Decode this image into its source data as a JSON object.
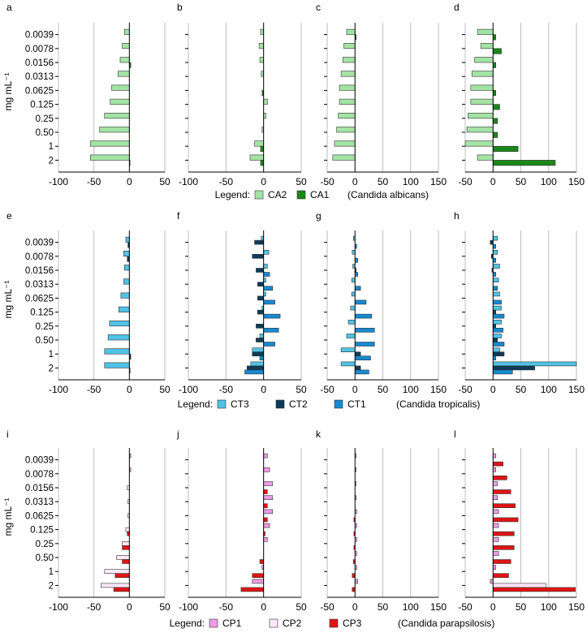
{
  "chart_data": {
    "type": "bar",
    "orientation": "horizontal",
    "ylabel": "mg mL⁻¹",
    "categories": [
      "0.0039",
      "0.0078",
      "0.0156",
      "0.0313",
      "0.0625",
      "0.125",
      "0.25",
      "0.50",
      "1",
      "2"
    ],
    "panels": [
      {
        "label": "a",
        "xlim": [
          -100,
          50
        ],
        "xticks": [
          -100,
          -50,
          0,
          50
        ],
        "series": [
          {
            "name": "CA2",
            "values": [
              -7,
              -10,
              -13,
              -16,
              -25,
              -27,
              -35,
              -42,
              -55,
              -55
            ]
          },
          {
            "name": "CA1",
            "values": [
              0,
              0,
              2,
              0,
              0,
              0,
              0,
              0,
              0,
              1
            ]
          }
        ]
      },
      {
        "label": "b",
        "xlim": [
          -100,
          50
        ],
        "xticks": [
          -100,
          -50,
          0,
          50
        ],
        "series": [
          {
            "name": "CA2",
            "values": [
              -4,
              -6,
              -5,
              -3,
              0,
              5,
              3,
              -2,
              -12,
              -18
            ]
          },
          {
            "name": "CA1",
            "values": [
              0,
              0,
              0,
              0,
              -2,
              0,
              0,
              0,
              -4,
              -4
            ]
          }
        ]
      },
      {
        "label": "c",
        "xlim": [
          -50,
          150
        ],
        "xticks": [
          -50,
          0,
          50,
          100,
          150
        ],
        "series": [
          {
            "name": "CA2",
            "values": [
              -15,
              -20,
              -22,
              -25,
              -28,
              -28,
              -30,
              -33,
              -37,
              -40
            ]
          },
          {
            "name": "CA1",
            "values": [
              2,
              0,
              0,
              0,
              0,
              0,
              0,
              0,
              0,
              0
            ]
          }
        ]
      },
      {
        "label": "d",
        "xlim": [
          -50,
          150
        ],
        "xticks": [
          -50,
          0,
          50,
          100,
          150
        ],
        "series": [
          {
            "name": "CA2",
            "values": [
              -28,
              -22,
              -33,
              -38,
              -40,
              -40,
              -45,
              -47,
              -50,
              -28
            ]
          },
          {
            "name": "CA1",
            "values": [
              5,
              15,
              5,
              0,
              5,
              12,
              8,
              8,
              45,
              112
            ]
          }
        ]
      },
      {
        "label": "e",
        "xlim": [
          -100,
          50
        ],
        "xticks": [
          -100,
          -50,
          0,
          50
        ],
        "series": [
          {
            "name": "CT3",
            "values": [
              -5,
              -8,
              -7,
              -8,
              -12,
              -15,
              -28,
              -30,
              -35,
              -35
            ]
          },
          {
            "name": "CT2",
            "values": [
              -2,
              -3,
              0,
              0,
              0,
              0,
              0,
              0,
              2,
              1
            ]
          }
        ]
      },
      {
        "label": "f",
        "xlim": [
          -100,
          50
        ],
        "xticks": [
          -100,
          -50,
          0,
          50
        ],
        "series": [
          {
            "name": "CT3",
            "values": [
              -3,
              7,
              5,
              3,
              3,
              -2,
              0,
              -5,
              -15,
              -17
            ]
          },
          {
            "name": "CT2",
            "values": [
              -12,
              -15,
              -10,
              -8,
              -8,
              -8,
              -10,
              -10,
              -15,
              -22
            ]
          },
          {
            "name": "CT1",
            "values": [
              0,
              0,
              8,
              12,
              15,
              22,
              20,
              15,
              -5,
              -25
            ]
          }
        ]
      },
      {
        "label": "g",
        "xlim": [
          -50,
          150
        ],
        "xticks": [
          -50,
          0,
          50,
          100,
          150
        ],
        "series": [
          {
            "name": "CT3",
            "values": [
              -3,
              -5,
              -4,
              -6,
              -6,
              -8,
              -12,
              -15,
              -25,
              -25
            ]
          },
          {
            "name": "CT2",
            "values": [
              0,
              0,
              2,
              0,
              0,
              0,
              0,
              0,
              10,
              10
            ]
          },
          {
            "name": "CT1",
            "values": [
              3,
              5,
              5,
              10,
              20,
              30,
              35,
              35,
              28,
              25
            ]
          }
        ]
      },
      {
        "label": "h",
        "xlim": [
          -50,
          150
        ],
        "xticks": [
          -50,
          0,
          50,
          100,
          150
        ],
        "series": [
          {
            "name": "CT3",
            "values": [
              8,
              8,
              12,
              10,
              12,
              15,
              15,
              15,
              12,
              150
            ]
          },
          {
            "name": "CT2",
            "values": [
              -5,
              -3,
              -2,
              0,
              0,
              5,
              5,
              8,
              20,
              75
            ]
          },
          {
            "name": "CT1",
            "values": [
              5,
              5,
              5,
              8,
              15,
              20,
              18,
              20,
              5,
              35
            ]
          }
        ]
      },
      {
        "label": "i",
        "xlim": [
          -100,
          50
        ],
        "xticks": [
          -100,
          -50,
          0,
          50
        ],
        "series": [
          {
            "name": "CP1",
            "values": [
              2,
              2,
              0,
              0,
              0,
              0,
              0,
              0,
              0,
              0
            ]
          },
          {
            "name": "CP2",
            "values": [
              0,
              0,
              -3,
              -2,
              -2,
              -5,
              -10,
              -18,
              -35,
              -40
            ]
          },
          {
            "name": "CP3",
            "values": [
              0,
              0,
              0,
              0,
              0,
              -3,
              -10,
              -10,
              -20,
              -22
            ]
          }
        ]
      },
      {
        "label": "j",
        "xlim": [
          -100,
          50
        ],
        "xticks": [
          -100,
          -50,
          0,
          50
        ],
        "series": [
          {
            "name": "CP1",
            "values": [
              5,
              8,
              12,
              12,
              12,
              8,
              5,
              0,
              -2,
              -15
            ]
          },
          {
            "name": "CP2",
            "values": [
              0,
              0,
              0,
              0,
              0,
              0,
              0,
              0,
              0,
              0
            ]
          },
          {
            "name": "CP3",
            "values": [
              0,
              0,
              5,
              5,
              5,
              2,
              0,
              -5,
              -15,
              -30
            ]
          }
        ]
      },
      {
        "label": "k",
        "xlim": [
          -50,
          150
        ],
        "xticks": [
          -50,
          0,
          50,
          100,
          150
        ],
        "series": [
          {
            "name": "CP1",
            "values": [
              2,
              2,
              2,
              2,
              3,
              3,
              3,
              3,
              3,
              5
            ]
          },
          {
            "name": "CP2",
            "values": [
              0,
              0,
              0,
              0,
              0,
              0,
              0,
              0,
              0,
              0
            ]
          },
          {
            "name": "CP3",
            "values": [
              0,
              0,
              0,
              0,
              -2,
              -2,
              -2,
              -3,
              -5,
              -5
            ]
          }
        ]
      },
      {
        "label": "l",
        "xlim": [
          -50,
          150
        ],
        "xticks": [
          -50,
          0,
          50,
          100,
          150
        ],
        "series": [
          {
            "name": "CP1",
            "values": [
              5,
              5,
              8,
              8,
              10,
              10,
              10,
              10,
              5,
              -5
            ]
          },
          {
            "name": "CP2",
            "values": [
              0,
              0,
              0,
              0,
              0,
              0,
              0,
              0,
              0,
              95
            ]
          },
          {
            "name": "CP3",
            "values": [
              18,
              25,
              32,
              40,
              45,
              38,
              38,
              32,
              28,
              148
            ]
          }
        ]
      }
    ],
    "legends": [
      {
        "prefix": "Legend:",
        "items": [
          {
            "name": "CA2"
          },
          {
            "name": "CA1"
          }
        ],
        "species": "(Candida albicans)"
      },
      {
        "prefix": "Legend:",
        "items": [
          {
            "name": "CT3"
          },
          {
            "name": "CT2"
          },
          {
            "name": "CT1"
          }
        ],
        "species": "(Candida tropicalis)"
      },
      {
        "prefix": "Legend:",
        "items": [
          {
            "name": "CP1"
          },
          {
            "name": "CP2"
          },
          {
            "name": "CP3"
          }
        ],
        "species": "(Candida parapsilosis)"
      }
    ],
    "colors": {
      "CA2": "#a3e4a4",
      "CA1": "#198719",
      "CT3": "#4fc3e6",
      "CT2": "#0d3b59",
      "CT1": "#1689d2",
      "CP1": "#ef9be6",
      "CP2": "#fde8f7",
      "CP3": "#e01414"
    },
    "grid": true
  }
}
